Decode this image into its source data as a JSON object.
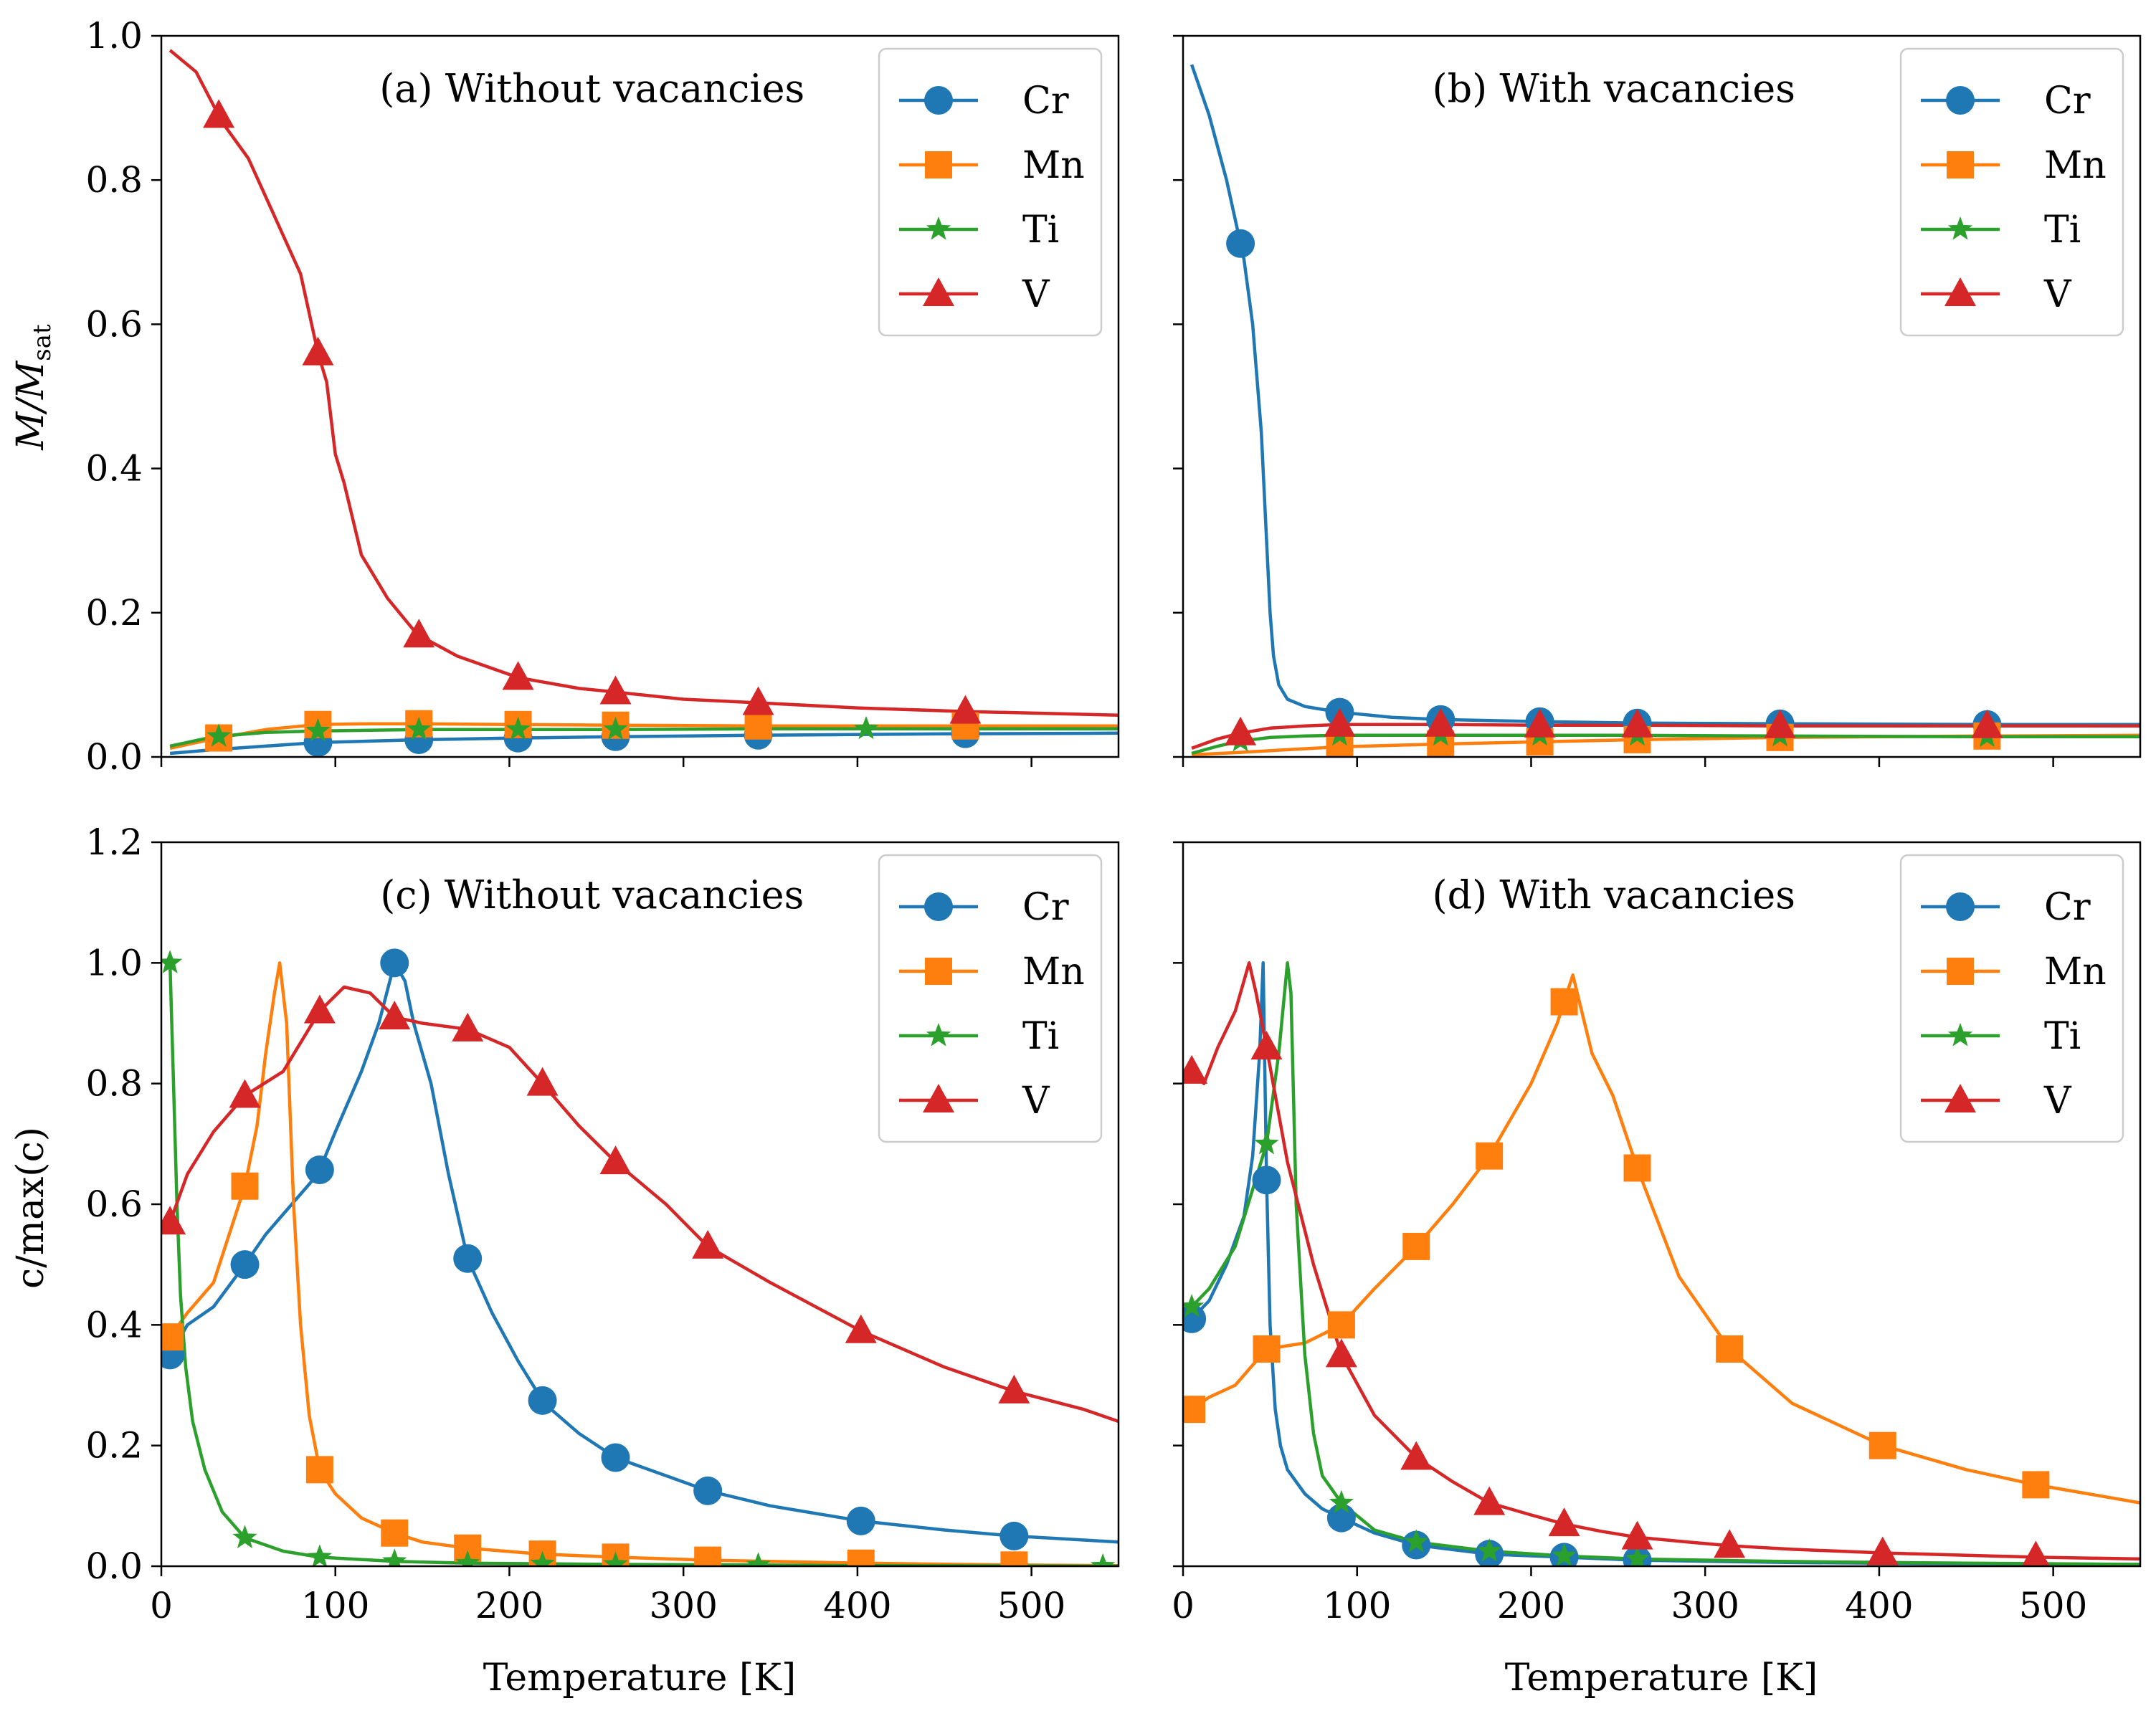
{
  "figure": {
    "xlabel": "Temperature [K]",
    "ylabel_top": "M/M",
    "ylabel_top_sub": "sat",
    "ylabel_bottom": "c/max(c)"
  },
  "colors": {
    "Cr": "#1f77b4",
    "Mn": "#ff7f0e",
    "Ti": "#2ca02c",
    "V": "#d62728"
  },
  "chart_data": [
    {
      "type": "line",
      "title": "(a) Without vacancies",
      "xlabel": "",
      "ylabel": "M/Msat",
      "xlim": [
        0,
        550
      ],
      "ylim": [
        0,
        1.0
      ],
      "xticks": [
        0,
        100,
        200,
        300,
        400,
        500
      ],
      "yticks": [
        0.0,
        0.2,
        0.4,
        0.6,
        0.8,
        1.0
      ],
      "ytick_labels": [
        "0.0",
        "0.2",
        "0.4",
        "0.6",
        "0.8",
        "1.0"
      ],
      "show_xtick_labels": false,
      "show_ytick_labels": true,
      "legend": "top-right",
      "series": [
        {
          "name": "Cr",
          "marker": "circle",
          "x": [
            5,
            30,
            60,
            90,
            120,
            150,
            200,
            260,
            340,
            450,
            550
          ],
          "y": [
            0.005,
            0.01,
            0.015,
            0.02,
            0.022,
            0.024,
            0.026,
            0.028,
            0.03,
            0.032,
            0.033
          ],
          "marker_x": [
            90,
            148,
            205,
            261,
            343,
            462
          ]
        },
        {
          "name": "Mn",
          "marker": "square",
          "x": [
            5,
            30,
            60,
            90,
            120,
            150,
            200,
            260,
            340,
            450,
            550
          ],
          "y": [
            0.012,
            0.025,
            0.038,
            0.045,
            0.046,
            0.046,
            0.045,
            0.044,
            0.043,
            0.043,
            0.043
          ],
          "marker_x": [
            33,
            90,
            148,
            205,
            261,
            343,
            462
          ]
        },
        {
          "name": "Ti",
          "marker": "star",
          "x": [
            5,
            30,
            60,
            90,
            120,
            150,
            200,
            260,
            340,
            450,
            550
          ],
          "y": [
            0.015,
            0.028,
            0.034,
            0.036,
            0.037,
            0.038,
            0.038,
            0.038,
            0.039,
            0.039,
            0.039
          ],
          "marker_x": [
            33,
            90,
            148,
            205,
            261,
            405
          ]
        },
        {
          "name": "V",
          "marker": "triangle",
          "x": [
            5,
            20,
            35,
            50,
            65,
            80,
            90,
            95,
            100,
            105,
            110,
            115,
            120,
            130,
            147,
            170,
            205,
            240,
            261,
            300,
            343,
            400,
            462,
            550
          ],
          "y": [
            0.98,
            0.95,
            0.88,
            0.83,
            0.75,
            0.67,
            0.56,
            0.52,
            0.42,
            0.38,
            0.33,
            0.28,
            0.26,
            0.22,
            0.17,
            0.14,
            0.11,
            0.095,
            0.09,
            0.08,
            0.075,
            0.068,
            0.063,
            0.058
          ],
          "marker_x": [
            33,
            90,
            148,
            205,
            261,
            343,
            462
          ]
        }
      ]
    },
    {
      "type": "line",
      "title": "(b) With vacancies",
      "xlabel": "",
      "ylabel": "",
      "xlim": [
        0,
        550
      ],
      "ylim": [
        0,
        1.0
      ],
      "xticks": [
        0,
        100,
        200,
        300,
        400,
        500
      ],
      "yticks": [
        0.0,
        0.2,
        0.4,
        0.6,
        0.8,
        1.0
      ],
      "ytick_labels": [
        "0.0",
        "0.2",
        "0.4",
        "0.6",
        "0.8",
        "1.0"
      ],
      "show_xtick_labels": false,
      "show_ytick_labels": false,
      "legend": "top-right",
      "series": [
        {
          "name": "Cr",
          "marker": "circle",
          "x": [
            5,
            15,
            25,
            35,
            40,
            45,
            48,
            50,
            52,
            55,
            60,
            70,
            90,
            120,
            148,
            205,
            261,
            343,
            462,
            550
          ],
          "y": [
            0.96,
            0.89,
            0.8,
            0.69,
            0.6,
            0.45,
            0.3,
            0.2,
            0.14,
            0.1,
            0.08,
            0.07,
            0.062,
            0.055,
            0.052,
            0.049,
            0.047,
            0.046,
            0.045,
            0.045
          ],
          "marker_x": [
            33,
            90,
            148,
            205,
            261,
            343,
            462
          ]
        },
        {
          "name": "Mn",
          "marker": "square",
          "x": [
            5,
            30,
            60,
            90,
            150,
            205,
            261,
            343,
            462,
            550
          ],
          "y": [
            0.003,
            0.006,
            0.01,
            0.014,
            0.018,
            0.021,
            0.024,
            0.027,
            0.029,
            0.03
          ],
          "marker_x": [
            90,
            148,
            205,
            261,
            343,
            462
          ]
        },
        {
          "name": "Ti",
          "marker": "star",
          "x": [
            5,
            20,
            33,
            50,
            70,
            90,
            150,
            205,
            261,
            343,
            462,
            550
          ],
          "y": [
            0.005,
            0.015,
            0.022,
            0.027,
            0.029,
            0.03,
            0.03,
            0.03,
            0.03,
            0.029,
            0.028,
            0.028
          ],
          "marker_x": [
            33,
            90,
            148,
            205,
            261,
            343,
            462
          ]
        },
        {
          "name": "V",
          "marker": "triangle",
          "x": [
            5,
            20,
            33,
            50,
            70,
            90,
            150,
            205,
            261,
            343,
            462,
            550
          ],
          "y": [
            0.012,
            0.025,
            0.033,
            0.04,
            0.043,
            0.045,
            0.045,
            0.044,
            0.044,
            0.043,
            0.043,
            0.043
          ],
          "marker_x": [
            33,
            90,
            148,
            205,
            261,
            343,
            462
          ]
        }
      ]
    },
    {
      "type": "line",
      "title": "(c) Without vacancies",
      "xlabel": "Temperature [K]",
      "ylabel": "c/max(c)",
      "xlim": [
        0,
        550
      ],
      "ylim": [
        0,
        1.2
      ],
      "xticks": [
        0,
        100,
        200,
        300,
        400,
        500
      ],
      "yticks": [
        0.0,
        0.2,
        0.4,
        0.6,
        0.8,
        1.0,
        1.2
      ],
      "ytick_labels": [
        "0.0",
        "0.2",
        "0.4",
        "0.6",
        "0.8",
        "1.0",
        "1.2"
      ],
      "show_xtick_labels": true,
      "show_ytick_labels": true,
      "legend": "top-right",
      "series": [
        {
          "name": "Cr",
          "marker": "circle",
          "x": [
            5,
            15,
            30,
            48,
            60,
            75,
            90,
            100,
            115,
            125,
            134,
            140,
            145,
            155,
            165,
            176,
            190,
            205,
            220,
            240,
            261,
            290,
            314,
            350,
            402,
            450,
            490,
            550
          ],
          "y": [
            0.35,
            0.4,
            0.43,
            0.5,
            0.55,
            0.6,
            0.65,
            0.72,
            0.82,
            0.9,
            1.0,
            0.97,
            0.9,
            0.8,
            0.65,
            0.51,
            0.42,
            0.34,
            0.27,
            0.22,
            0.18,
            0.15,
            0.125,
            0.1,
            0.075,
            0.06,
            0.05,
            0.04
          ],
          "marker_x": [
            5,
            48,
            91,
            134,
            176,
            219,
            261,
            314,
            402,
            490
          ]
        },
        {
          "name": "Mn",
          "marker": "square",
          "x": [
            5,
            15,
            30,
            48,
            55,
            60,
            65,
            68,
            72,
            76,
            80,
            85,
            91,
            100,
            115,
            134,
            150,
            176,
            219,
            261,
            314,
            402,
            490,
            550
          ],
          "y": [
            0.38,
            0.42,
            0.47,
            0.63,
            0.73,
            0.85,
            0.95,
            1.0,
            0.9,
            0.6,
            0.4,
            0.25,
            0.16,
            0.12,
            0.08,
            0.055,
            0.04,
            0.03,
            0.02,
            0.015,
            0.01,
            0.005,
            0.002,
            0.001
          ],
          "marker_x": [
            5,
            48,
            91,
            134,
            176,
            219,
            261,
            314,
            402,
            490
          ]
        },
        {
          "name": "Ti",
          "marker": "star",
          "x": [
            5,
            7,
            9,
            11,
            14,
            18,
            25,
            35,
            48,
            70,
            91,
            134,
            176,
            219,
            261,
            343,
            400,
            541,
            550
          ],
          "y": [
            1.0,
            0.8,
            0.6,
            0.45,
            0.33,
            0.24,
            0.16,
            0.09,
            0.047,
            0.025,
            0.015,
            0.008,
            0.005,
            0.004,
            0.003,
            0.002,
            0.001,
            0.0,
            0.0
          ],
          "marker_x": [
            5,
            48,
            91,
            134,
            176,
            219,
            261,
            343,
            541
          ]
        },
        {
          "name": "V",
          "marker": "triangle",
          "x": [
            5,
            15,
            30,
            48,
            70,
            91,
            105,
            120,
            134,
            150,
            176,
            200,
            219,
            240,
            261,
            290,
            314,
            350,
            402,
            450,
            490,
            530,
            550
          ],
          "y": [
            0.57,
            0.65,
            0.72,
            0.78,
            0.82,
            0.92,
            0.96,
            0.95,
            0.91,
            0.9,
            0.89,
            0.86,
            0.8,
            0.73,
            0.67,
            0.6,
            0.53,
            0.47,
            0.39,
            0.33,
            0.29,
            0.26,
            0.24
          ],
          "marker_x": [
            5,
            48,
            91,
            134,
            176,
            219,
            261,
            314,
            402,
            490
          ]
        }
      ]
    },
    {
      "type": "line",
      "title": "(d) With vacancies",
      "xlabel": "Temperature [K]",
      "ylabel": "",
      "xlim": [
        0,
        550
      ],
      "ylim": [
        0,
        1.2
      ],
      "xticks": [
        0,
        100,
        200,
        300,
        400,
        500
      ],
      "yticks": [
        0.0,
        0.2,
        0.4,
        0.6,
        0.8,
        1.0,
        1.2
      ],
      "ytick_labels": [
        "0.0",
        "0.2",
        "0.4",
        "0.6",
        "0.8",
        "1.0",
        "1.2"
      ],
      "show_xtick_labels": true,
      "show_ytick_labels": false,
      "legend": "top-right",
      "series": [
        {
          "name": "Cr",
          "marker": "circle",
          "x": [
            5,
            15,
            25,
            35,
            40,
            44,
            46,
            48,
            50,
            53,
            56,
            60,
            70,
            80,
            91,
            110,
            134,
            176,
            219,
            261,
            350,
            450,
            550
          ],
          "y": [
            0.41,
            0.44,
            0.5,
            0.58,
            0.68,
            0.85,
            1.0,
            0.64,
            0.4,
            0.26,
            0.2,
            0.16,
            0.12,
            0.095,
            0.08,
            0.055,
            0.035,
            0.02,
            0.015,
            0.01,
            0.006,
            0.004,
            0.003
          ],
          "marker_x": [
            5,
            48,
            91,
            134,
            176,
            219,
            261
          ]
        },
        {
          "name": "Mn",
          "marker": "square",
          "x": [
            5,
            15,
            30,
            48,
            70,
            91,
            110,
            134,
            155,
            176,
            200,
            215,
            224,
            235,
            247,
            261,
            285,
            314,
            350,
            402,
            450,
            490,
            550
          ],
          "y": [
            0.26,
            0.28,
            0.3,
            0.36,
            0.37,
            0.4,
            0.46,
            0.53,
            0.6,
            0.68,
            0.8,
            0.9,
            0.98,
            0.85,
            0.78,
            0.66,
            0.48,
            0.36,
            0.27,
            0.2,
            0.16,
            0.135,
            0.105
          ],
          "marker_x": [
            5,
            48,
            91,
            134,
            176,
            219,
            261,
            314,
            402,
            490
          ]
        },
        {
          "name": "Ti",
          "marker": "star",
          "x": [
            5,
            15,
            30,
            48,
            55,
            60,
            62,
            65,
            70,
            75,
            80,
            91,
            110,
            134,
            176,
            219,
            261,
            343,
            450,
            550
          ],
          "y": [
            0.43,
            0.46,
            0.53,
            0.7,
            0.85,
            1.0,
            0.95,
            0.6,
            0.35,
            0.22,
            0.15,
            0.105,
            0.06,
            0.04,
            0.025,
            0.017,
            0.012,
            0.008,
            0.005,
            0.003
          ],
          "marker_x": [
            5,
            48,
            91,
            134,
            176,
            219,
            261
          ]
        },
        {
          "name": "V",
          "marker": "triangle",
          "x": [
            5,
            12,
            20,
            30,
            38,
            42,
            48,
            60,
            75,
            91,
            110,
            134,
            155,
            176,
            200,
            219,
            240,
            261,
            290,
            314,
            350,
            402,
            450,
            490,
            550
          ],
          "y": [
            0.82,
            0.8,
            0.86,
            0.92,
            1.0,
            0.95,
            0.86,
            0.67,
            0.5,
            0.35,
            0.25,
            0.18,
            0.14,
            0.105,
            0.085,
            0.07,
            0.058,
            0.048,
            0.04,
            0.034,
            0.028,
            0.022,
            0.018,
            0.015,
            0.012
          ],
          "marker_x": [
            5,
            48,
            91,
            134,
            176,
            219,
            261,
            314,
            402,
            490
          ]
        }
      ]
    }
  ]
}
